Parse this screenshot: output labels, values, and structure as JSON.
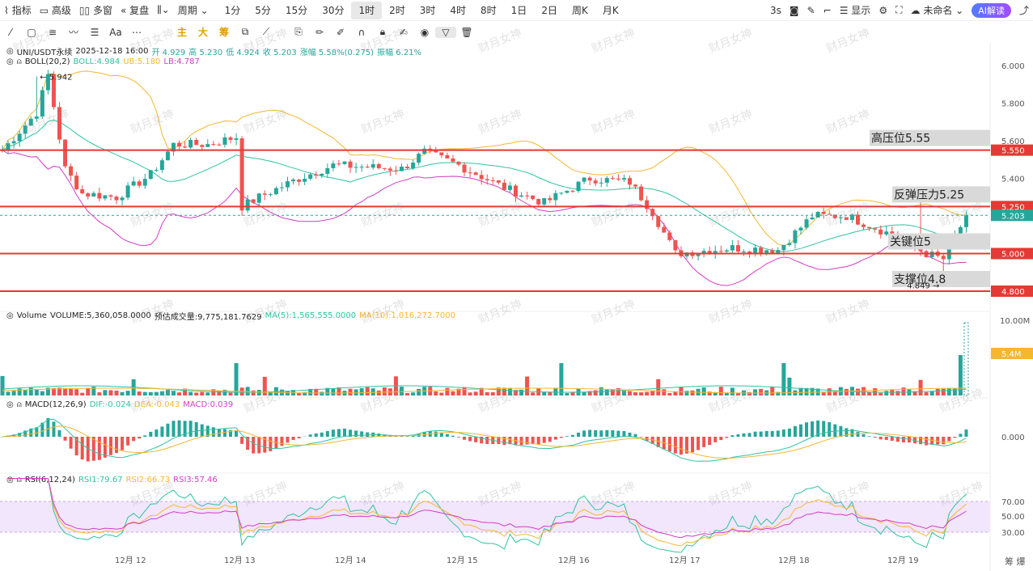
{
  "toolbar": {
    "indicator": "指标",
    "advanced": "高级",
    "multi_window": "多窗",
    "replay": "复盘",
    "period": "周期",
    "intervals": [
      "1分",
      "5分",
      "15分",
      "30分",
      "1时",
      "2时",
      "3时",
      "4时",
      "8时",
      "1日",
      "2日",
      "周K",
      "月K"
    ],
    "selected_interval": "1时",
    "refresh": "3s",
    "display": "显示",
    "untitled": "未命名",
    "ai": "AI解读"
  },
  "drawtools": {
    "cn": [
      "主",
      "大",
      "筹"
    ]
  },
  "legend": {
    "symbol": "UNI/USDT永续",
    "time": "2025-12-18 16:00",
    "open": "开 4.929",
    "high": "高 5.230",
    "low": "低 4.924",
    "close": "收 5.203",
    "change": "涨幅 5.58%(0.275)",
    "amp": "振幅 6.21%",
    "boll": "BOLL(20,2)",
    "boll_mid": "BOLL:4.984",
    "boll_ub": "UB:5.180",
    "boll_lb": "LB:4.787",
    "vol": "Volume",
    "vol_val": "VOLUME:5,360,058.0000",
    "vol_est": "预估成交量:9,775,181.7629",
    "ma5": "MA(5):1,565,555.0000",
    "ma10": "MA(10):1,016,272.7000",
    "macd": "MACD(12,26,9)",
    "dif": "DIF:-0.024",
    "dea": "DEA:-0.043",
    "macd_val": "MACD:0.039",
    "rsi": "RSI(6,12,24)",
    "rsi1": "RSI1:79.67",
    "rsi2": "RSI2:66.73",
    "rsi3": "RSI3:57.46"
  },
  "colors": {
    "up": "#26a69a",
    "down": "#ef5350",
    "boll_mid": "#2ec4a0",
    "boll_ub": "#f5b731",
    "boll_lb": "#d43cc8",
    "level": "#e53935"
  },
  "watermark": "财月女神",
  "price_axis": [
    "6.000",
    "5.800",
    "5.600",
    "5.400",
    "5.250",
    "5.203",
    "5.000",
    "4.800"
  ],
  "annotations": {
    "high": "高压位5.55",
    "rebound": "反弹压力5.25",
    "key": "关键位5",
    "support": "支撑位4.8"
  },
  "labels": {
    "max": "5.942",
    "min": "4.849",
    "level_555": "5.550",
    "level_525": "5.250",
    "level_500": "5.000",
    "level_480": "4.800",
    "cur": "5.203",
    "vol_axis": "10.00M",
    "vol_cur": "5.4M",
    "macd_zero": "0.000",
    "rsi_70": "70.00",
    "rsi_50": "50.00",
    "rsi_30": "30.00"
  },
  "dates": [
    "12月 12",
    "12月 13",
    "12月 14",
    "12月 15",
    "12月 16",
    "12月 17",
    "12月 18",
    "12月 19"
  ],
  "chart_data": {
    "type": "candlestick",
    "current_price": 5.203,
    "levels": [
      5.55,
      5.25,
      5.0,
      4.8
    ],
    "ylim": [
      4.78,
      6.08
    ],
    "period": "1H"
  }
}
